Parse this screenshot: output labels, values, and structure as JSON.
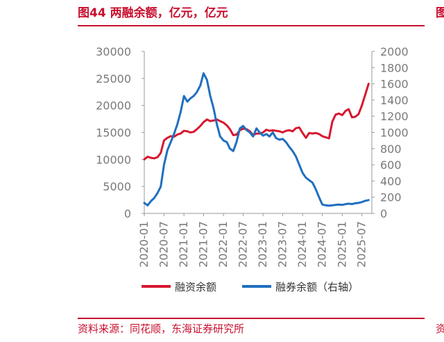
{
  "header": {
    "title": "图44 两融余额，亿元，亿元",
    "corner_fragment": "图"
  },
  "footer": {
    "source": "资料来源：同花顺，东海证券研究所",
    "corner_fragment": "资"
  },
  "colors": {
    "brand_red": "#c8102e",
    "margin_financing": "#d7172f",
    "securities_lending": "#1f6fbf",
    "axis_text": "#7a7a7a"
  },
  "chart_data": {
    "type": "line",
    "title": "",
    "xlabel": "",
    "ylabel": "",
    "y_left": {
      "range": [
        0,
        30000
      ],
      "ticks": [
        "0",
        "5000",
        "10000",
        "15000",
        "20000",
        "25000",
        "30000"
      ]
    },
    "y_right": {
      "range": [
        0,
        2000
      ],
      "ticks": [
        "0",
        "200",
        "400",
        "600",
        "800",
        "1000",
        "1200",
        "1400",
        "1600",
        "1800",
        "2000"
      ]
    },
    "x_ticks": [
      "2020-01",
      "2020-07",
      "2021-01",
      "2021-07",
      "2022-01",
      "2022-07",
      "2023-01",
      "2023-07",
      "2024-01",
      "2024-07",
      "2025-01",
      "2025-07"
    ],
    "legend": {
      "placement": "bottom"
    },
    "grid": false,
    "series": [
      {
        "name": "融资余额",
        "axis": "left",
        "color": "#d7172f",
        "points": [
          [
            "2020-01",
            10000
          ],
          [
            "2020-02",
            10500
          ],
          [
            "2020-03",
            10300
          ],
          [
            "2020-04",
            10200
          ],
          [
            "2020-05",
            10400
          ],
          [
            "2020-06",
            11200
          ],
          [
            "2020-07",
            13500
          ],
          [
            "2020-08",
            14000
          ],
          [
            "2020-09",
            14300
          ],
          [
            "2020-10",
            14200
          ],
          [
            "2020-11",
            14600
          ],
          [
            "2020-12",
            14800
          ],
          [
            "2021-01",
            15300
          ],
          [
            "2021-02",
            15200
          ],
          [
            "2021-03",
            15000
          ],
          [
            "2021-04",
            15100
          ],
          [
            "2021-05",
            15600
          ],
          [
            "2021-06",
            16200
          ],
          [
            "2021-07",
            16900
          ],
          [
            "2021-08",
            17400
          ],
          [
            "2021-09",
            17100
          ],
          [
            "2021-10",
            17200
          ],
          [
            "2021-11",
            17400
          ],
          [
            "2021-12",
            17100
          ],
          [
            "2022-01",
            16800
          ],
          [
            "2022-02",
            16300
          ],
          [
            "2022-03",
            15600
          ],
          [
            "2022-04",
            14500
          ],
          [
            "2022-05",
            14600
          ],
          [
            "2022-06",
            15400
          ],
          [
            "2022-07",
            15700
          ],
          [
            "2022-08",
            15600
          ],
          [
            "2022-09",
            15200
          ],
          [
            "2022-10",
            14500
          ],
          [
            "2022-11",
            14800
          ],
          [
            "2022-12",
            14800
          ],
          [
            "2023-01",
            15000
          ],
          [
            "2023-02",
            15500
          ],
          [
            "2023-03",
            15300
          ],
          [
            "2023-04",
            15400
          ],
          [
            "2023-05",
            15300
          ],
          [
            "2023-06",
            15200
          ],
          [
            "2023-07",
            15000
          ],
          [
            "2023-08",
            15300
          ],
          [
            "2023-09",
            15400
          ],
          [
            "2023-10",
            15200
          ],
          [
            "2023-11",
            15800
          ],
          [
            "2023-12",
            15900
          ],
          [
            "2024-01",
            14900
          ],
          [
            "2024-02",
            14000
          ],
          [
            "2024-03",
            14900
          ],
          [
            "2024-04",
            14800
          ],
          [
            "2024-05",
            14900
          ],
          [
            "2024-06",
            14700
          ],
          [
            "2024-07",
            14300
          ],
          [
            "2024-08",
            14100
          ],
          [
            "2024-09",
            13900
          ],
          [
            "2024-10",
            17000
          ],
          [
            "2024-11",
            18300
          ],
          [
            "2024-12",
            18500
          ],
          [
            "2025-01",
            18200
          ],
          [
            "2025-02",
            19000
          ],
          [
            "2025-03",
            19300
          ],
          [
            "2025-04",
            17800
          ],
          [
            "2025-05",
            17900
          ],
          [
            "2025-06",
            18400
          ],
          [
            "2025-07",
            20000
          ],
          [
            "2025-08",
            22000
          ],
          [
            "2025-09",
            24000
          ]
        ]
      },
      {
        "name": "融券余额（右轴）",
        "axis": "right",
        "color": "#1f6fbf",
        "points": [
          [
            "2020-01",
            130
          ],
          [
            "2020-02",
            100
          ],
          [
            "2020-03",
            150
          ],
          [
            "2020-04",
            190
          ],
          [
            "2020-05",
            250
          ],
          [
            "2020-06",
            330
          ],
          [
            "2020-07",
            600
          ],
          [
            "2020-08",
            780
          ],
          [
            "2020-09",
            880
          ],
          [
            "2020-10",
            980
          ],
          [
            "2020-11",
            1100
          ],
          [
            "2020-12",
            1250
          ],
          [
            "2021-01",
            1450
          ],
          [
            "2021-02",
            1380
          ],
          [
            "2021-03",
            1420
          ],
          [
            "2021-04",
            1450
          ],
          [
            "2021-05",
            1500
          ],
          [
            "2021-06",
            1580
          ],
          [
            "2021-07",
            1730
          ],
          [
            "2021-08",
            1650
          ],
          [
            "2021-09",
            1450
          ],
          [
            "2021-10",
            1300
          ],
          [
            "2021-11",
            1100
          ],
          [
            "2021-12",
            950
          ],
          [
            "2022-01",
            900
          ],
          [
            "2022-02",
            880
          ],
          [
            "2022-03",
            800
          ],
          [
            "2022-04",
            770
          ],
          [
            "2022-05",
            880
          ],
          [
            "2022-06",
            1050
          ],
          [
            "2022-07",
            1080
          ],
          [
            "2022-08",
            1030
          ],
          [
            "2022-09",
            1000
          ],
          [
            "2022-10",
            950
          ],
          [
            "2022-11",
            1050
          ],
          [
            "2022-12",
            1000
          ],
          [
            "2023-01",
            960
          ],
          [
            "2023-02",
            980
          ],
          [
            "2023-03",
            950
          ],
          [
            "2023-04",
            1000
          ],
          [
            "2023-05",
            930
          ],
          [
            "2023-06",
            910
          ],
          [
            "2023-07",
            920
          ],
          [
            "2023-08",
            880
          ],
          [
            "2023-09",
            820
          ],
          [
            "2023-10",
            770
          ],
          [
            "2023-11",
            700
          ],
          [
            "2023-12",
            600
          ],
          [
            "2024-01",
            500
          ],
          [
            "2024-02",
            440
          ],
          [
            "2024-03",
            410
          ],
          [
            "2024-04",
            380
          ],
          [
            "2024-05",
            300
          ],
          [
            "2024-06",
            200
          ],
          [
            "2024-07",
            110
          ],
          [
            "2024-08",
            100
          ],
          [
            "2024-09",
            95
          ],
          [
            "2024-10",
            100
          ],
          [
            "2024-11",
            105
          ],
          [
            "2024-12",
            110
          ],
          [
            "2025-01",
            105
          ],
          [
            "2025-02",
            115
          ],
          [
            "2025-03",
            120
          ],
          [
            "2025-04",
            115
          ],
          [
            "2025-05",
            125
          ],
          [
            "2025-06",
            130
          ],
          [
            "2025-07",
            140
          ],
          [
            "2025-08",
            155
          ],
          [
            "2025-09",
            165
          ]
        ]
      }
    ]
  }
}
